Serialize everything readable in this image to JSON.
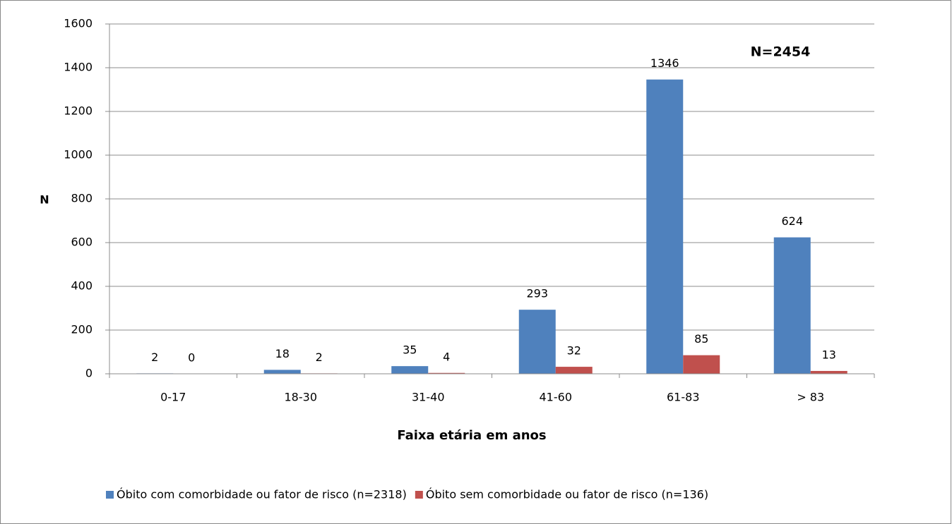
{
  "chart_data": {
    "type": "bar",
    "annotation": "N=2454",
    "y_label": "N",
    "x_label": "Faixa etária em anos",
    "categories": [
      "0-17",
      "18-30",
      "31-40",
      "41-60",
      "61-83",
      "> 83"
    ],
    "series": [
      {
        "name": "Óbito com comorbidade ou fator de risco (n=2318)",
        "color": "#4f81bd",
        "values": [
          2,
          18,
          35,
          293,
          1346,
          624
        ]
      },
      {
        "name": "Óbito sem comorbidade ou fator de risco (n=136)",
        "color": "#c0504d",
        "values": [
          0,
          2,
          4,
          32,
          85,
          13
        ]
      }
    ],
    "ylim": [
      0,
      1600
    ],
    "yticks": [
      0,
      200,
      400,
      600,
      800,
      1000,
      1200,
      1400,
      1600
    ],
    "grid": true,
    "legend": "bottom"
  }
}
